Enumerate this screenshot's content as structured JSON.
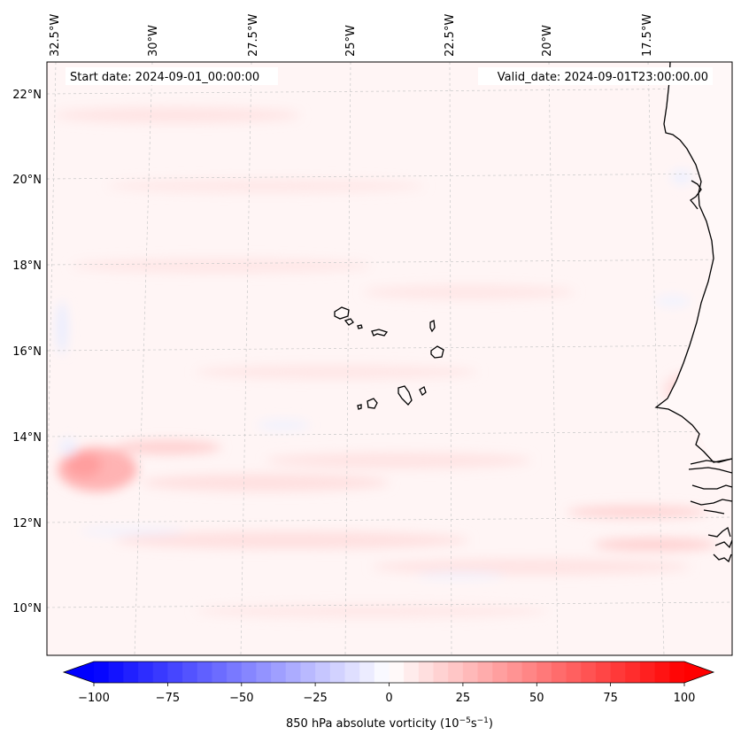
{
  "map": {
    "start_label": "Start date: 2024-09-01_00:00:00",
    "valid_label": "Valid_date: 2024-09-01T23:00:00.00",
    "lon_labels": [
      "32.5°W",
      "30°W",
      "27.5°W",
      "25°W",
      "22.5°W",
      "20°W",
      "17.5°W"
    ],
    "lat_labels": [
      "22°N",
      "20°N",
      "18°N",
      "16°N",
      "14°N",
      "12°N",
      "10°N"
    ],
    "land_color": "#ffffff",
    "coast_color": "#000000"
  },
  "colorbar": {
    "ticks": [
      "−100",
      "−75",
      "−50",
      "−25",
      "0",
      "25",
      "50",
      "75",
      "100"
    ],
    "label_main": "850 hPa absolute vorticity (10",
    "label_exp1": "−5",
    "label_mid": "s",
    "label_exp2": "−1",
    "label_end": ")",
    "min_value": -100,
    "max_value": 100,
    "step": 5,
    "neg_color": "#0000ff",
    "pos_color": "#ff0000"
  }
}
